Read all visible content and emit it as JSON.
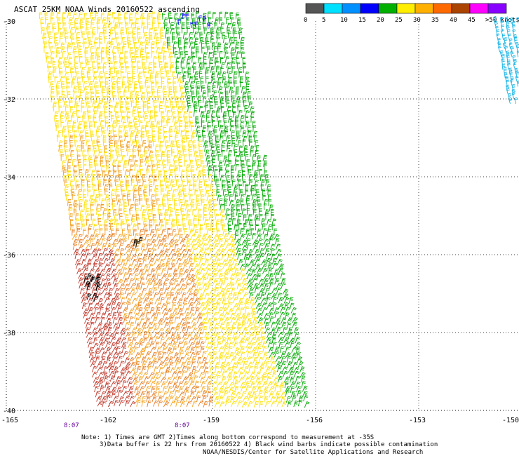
{
  "title": "ASCAT 25KM NOAA Winds 20160522 ascending",
  "legend": {
    "labels": [
      "0",
      "5",
      "10",
      "15",
      "20",
      "25",
      "30",
      "35",
      "40",
      "45",
      ">50 knots"
    ],
    "colors": [
      "#555555",
      "#00e0ff",
      "#0090ff",
      "#0000ff",
      "#00b000",
      "#ffee00",
      "#ffb000",
      "#ff6a00",
      "#aa4400",
      "#ff00ff",
      "#8800ff"
    ]
  },
  "map": {
    "lat_labels": [
      "-30",
      "-32",
      "-34",
      "-36",
      "-38",
      "-40"
    ],
    "lon_labels": [
      "-165",
      "-162",
      "-159",
      "-156",
      "-153",
      "-150"
    ],
    "time_labels": [
      "8:07",
      "8:07"
    ],
    "time_color": "#660099"
  },
  "notes": [
    "Note: 1) Times are GMT 2)Times along bottom correspond to measurement at -35S",
    "3)Data buffer is 22 hrs from 20160522 4) Black wind barbs indicate possible contamination",
    "NOAA/NESDIS/Center for Satellite Applications and Research"
  ]
}
